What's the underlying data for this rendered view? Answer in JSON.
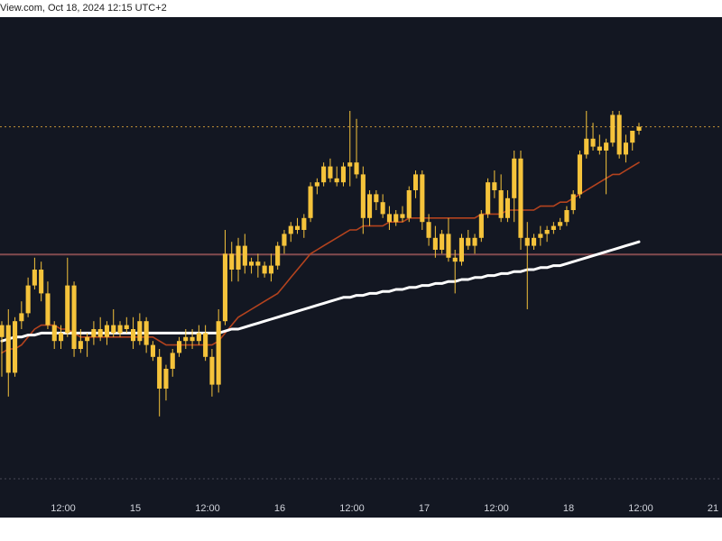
{
  "header": {
    "text": "View.com, Oct 18, 2024 12:15 UTC+2"
  },
  "colors": {
    "background": "#131722",
    "candle": "#f5c33b",
    "ma_short": "#b4431e",
    "ma_long": "#ffffff",
    "resistance": "#d8a13a",
    "support": "#8a4e52",
    "tick_text": "#d1d4dc"
  },
  "chart_data": {
    "type": "candlestick",
    "x_tick_labels": [
      "12:00",
      "15",
      "12:00",
      "16",
      "12:00",
      "17",
      "12:00",
      "18",
      "12:00",
      "21"
    ],
    "ylim": [
      0,
      100
    ],
    "grid": false,
    "legend": "none",
    "levels": [
      {
        "kind": "resistance-dotted",
        "value": 86
      },
      {
        "kind": "support-solid",
        "value": 53.8
      }
    ],
    "candles": [
      {
        "o": 33,
        "h": 37,
        "l": 23,
        "c": 36
      },
      {
        "o": 36,
        "h": 40,
        "l": 18,
        "c": 24
      },
      {
        "o": 24,
        "h": 38,
        "l": 23,
        "c": 37
      },
      {
        "o": 37,
        "h": 42,
        "l": 35,
        "c": 39
      },
      {
        "o": 39,
        "h": 48,
        "l": 38,
        "c": 46
      },
      {
        "o": 46,
        "h": 53,
        "l": 45,
        "c": 50
      },
      {
        "o": 50,
        "h": 52,
        "l": 42,
        "c": 44
      },
      {
        "o": 44,
        "h": 47,
        "l": 35,
        "c": 36
      },
      {
        "o": 36,
        "h": 37,
        "l": 30,
        "c": 32
      },
      {
        "o": 32,
        "h": 36,
        "l": 30,
        "c": 34
      },
      {
        "o": 34,
        "h": 53,
        "l": 33,
        "c": 46
      },
      {
        "o": 46,
        "h": 47,
        "l": 28,
        "c": 30
      },
      {
        "o": 30,
        "h": 35,
        "l": 29,
        "c": 32
      },
      {
        "o": 32,
        "h": 34,
        "l": 28,
        "c": 33
      },
      {
        "o": 33,
        "h": 37,
        "l": 31,
        "c": 35
      },
      {
        "o": 35,
        "h": 38,
        "l": 32,
        "c": 33
      },
      {
        "o": 33,
        "h": 37,
        "l": 31,
        "c": 36
      },
      {
        "o": 36,
        "h": 40,
        "l": 33,
        "c": 34
      },
      {
        "o": 34,
        "h": 37,
        "l": 33,
        "c": 36
      },
      {
        "o": 36,
        "h": 38,
        "l": 34,
        "c": 35
      },
      {
        "o": 35,
        "h": 38,
        "l": 30,
        "c": 32
      },
      {
        "o": 32,
        "h": 39,
        "l": 31,
        "c": 37
      },
      {
        "o": 37,
        "h": 38,
        "l": 29,
        "c": 31
      },
      {
        "o": 31,
        "h": 32,
        "l": 27,
        "c": 28
      },
      {
        "o": 28,
        "h": 30,
        "l": 13,
        "c": 20
      },
      {
        "o": 20,
        "h": 26,
        "l": 17,
        "c": 25
      },
      {
        "o": 25,
        "h": 30,
        "l": 23,
        "c": 29
      },
      {
        "o": 29,
        "h": 33,
        "l": 28,
        "c": 32
      },
      {
        "o": 32,
        "h": 35,
        "l": 30,
        "c": 33
      },
      {
        "o": 33,
        "h": 35,
        "l": 30,
        "c": 32
      },
      {
        "o": 32,
        "h": 36,
        "l": 31,
        "c": 34
      },
      {
        "o": 34,
        "h": 36,
        "l": 27,
        "c": 28
      },
      {
        "o": 28,
        "h": 30,
        "l": 18,
        "c": 21
      },
      {
        "o": 21,
        "h": 40,
        "l": 19,
        "c": 37
      },
      {
        "o": 37,
        "h": 60,
        "l": 36,
        "c": 54
      },
      {
        "o": 54,
        "h": 57,
        "l": 47,
        "c": 50
      },
      {
        "o": 50,
        "h": 58,
        "l": 47,
        "c": 56
      },
      {
        "o": 56,
        "h": 59,
        "l": 49,
        "c": 51
      },
      {
        "o": 51,
        "h": 53,
        "l": 49,
        "c": 52
      },
      {
        "o": 52,
        "h": 54,
        "l": 48,
        "c": 51
      },
      {
        "o": 51,
        "h": 52,
        "l": 48,
        "c": 49
      },
      {
        "o": 49,
        "h": 54,
        "l": 47,
        "c": 51
      },
      {
        "o": 51,
        "h": 57,
        "l": 50,
        "c": 56
      },
      {
        "o": 56,
        "h": 60,
        "l": 54,
        "c": 59
      },
      {
        "o": 59,
        "h": 62,
        "l": 57,
        "c": 61
      },
      {
        "o": 61,
        "h": 63,
        "l": 59,
        "c": 60
      },
      {
        "o": 60,
        "h": 64,
        "l": 58,
        "c": 63
      },
      {
        "o": 63,
        "h": 72,
        "l": 62,
        "c": 71
      },
      {
        "o": 71,
        "h": 73,
        "l": 69,
        "c": 72
      },
      {
        "o": 72,
        "h": 77,
        "l": 71,
        "c": 76
      },
      {
        "o": 76,
        "h": 78,
        "l": 72,
        "c": 73
      },
      {
        "o": 73,
        "h": 76,
        "l": 71,
        "c": 72
      },
      {
        "o": 72,
        "h": 77,
        "l": 71,
        "c": 76
      },
      {
        "o": 76,
        "h": 90,
        "l": 71,
        "c": 77
      },
      {
        "o": 77,
        "h": 88,
        "l": 73,
        "c": 74
      },
      {
        "o": 74,
        "h": 76,
        "l": 59,
        "c": 63
      },
      {
        "o": 63,
        "h": 70,
        "l": 61,
        "c": 69
      },
      {
        "o": 69,
        "h": 70,
        "l": 65,
        "c": 67
      },
      {
        "o": 67,
        "h": 69,
        "l": 63,
        "c": 64
      },
      {
        "o": 64,
        "h": 66,
        "l": 60,
        "c": 62
      },
      {
        "o": 62,
        "h": 65,
        "l": 61,
        "c": 64
      },
      {
        "o": 64,
        "h": 66,
        "l": 62,
        "c": 63
      },
      {
        "o": 63,
        "h": 71,
        "l": 62,
        "c": 70
      },
      {
        "o": 70,
        "h": 75,
        "l": 68,
        "c": 74
      },
      {
        "o": 74,
        "h": 75,
        "l": 60,
        "c": 62
      },
      {
        "o": 62,
        "h": 64,
        "l": 56,
        "c": 58
      },
      {
        "o": 58,
        "h": 61,
        "l": 53,
        "c": 55
      },
      {
        "o": 55,
        "h": 60,
        "l": 54,
        "c": 59
      },
      {
        "o": 59,
        "h": 63,
        "l": 52,
        "c": 53
      },
      {
        "o": 53,
        "h": 55,
        "l": 44,
        "c": 52
      },
      {
        "o": 52,
        "h": 59,
        "l": 51,
        "c": 58
      },
      {
        "o": 58,
        "h": 60,
        "l": 55,
        "c": 56
      },
      {
        "o": 56,
        "h": 59,
        "l": 54,
        "c": 58
      },
      {
        "o": 58,
        "h": 65,
        "l": 57,
        "c": 64
      },
      {
        "o": 64,
        "h": 73,
        "l": 63,
        "c": 72
      },
      {
        "o": 72,
        "h": 75,
        "l": 68,
        "c": 70
      },
      {
        "o": 70,
        "h": 74,
        "l": 62,
        "c": 63
      },
      {
        "o": 63,
        "h": 70,
        "l": 62,
        "c": 68
      },
      {
        "o": 68,
        "h": 80,
        "l": 62,
        "c": 78
      },
      {
        "o": 78,
        "h": 80,
        "l": 55,
        "c": 58
      },
      {
        "o": 58,
        "h": 62,
        "l": 40,
        "c": 56
      },
      {
        "o": 56,
        "h": 59,
        "l": 55,
        "c": 58
      },
      {
        "o": 58,
        "h": 61,
        "l": 56,
        "c": 59
      },
      {
        "o": 59,
        "h": 61,
        "l": 57,
        "c": 60
      },
      {
        "o": 60,
        "h": 62,
        "l": 59,
        "c": 61
      },
      {
        "o": 61,
        "h": 63,
        "l": 60,
        "c": 62
      },
      {
        "o": 62,
        "h": 66,
        "l": 61,
        "c": 65
      },
      {
        "o": 65,
        "h": 70,
        "l": 64,
        "c": 69
      },
      {
        "o": 69,
        "h": 80,
        "l": 68,
        "c": 79
      },
      {
        "o": 79,
        "h": 90,
        "l": 78,
        "c": 83
      },
      {
        "o": 83,
        "h": 87,
        "l": 80,
        "c": 81
      },
      {
        "o": 81,
        "h": 84,
        "l": 79,
        "c": 80
      },
      {
        "o": 80,
        "h": 83,
        "l": 69,
        "c": 82
      },
      {
        "o": 82,
        "h": 90,
        "l": 81,
        "c": 89
      },
      {
        "o": 89,
        "h": 90,
        "l": 78,
        "c": 79
      },
      {
        "o": 79,
        "h": 84,
        "l": 77,
        "c": 82
      },
      {
        "o": 82,
        "h": 85,
        "l": 80,
        "c": 85
      },
      {
        "o": 85,
        "h": 87,
        "l": 84,
        "c": 86
      }
    ],
    "series": [
      {
        "kind": "moving-average-short",
        "values": [
          29,
          30,
          30,
          31,
          33,
          35,
          36,
          36,
          36,
          35,
          35,
          34,
          33,
          33,
          33,
          33,
          33,
          33,
          33,
          33,
          33,
          33,
          33,
          33,
          32,
          31,
          31,
          31,
          31,
          31,
          31,
          31,
          31,
          32,
          34,
          36,
          38,
          39,
          40,
          41,
          42,
          43,
          44,
          46,
          48,
          50,
          52,
          54,
          55,
          56,
          57,
          58,
          59,
          60,
          60,
          61,
          61,
          61,
          61,
          62,
          62,
          62,
          63,
          63,
          63,
          63,
          63,
          63,
          63,
          63,
          63,
          63,
          63,
          64,
          64,
          64,
          64,
          65,
          65,
          65,
          65,
          65,
          66,
          66,
          66,
          67,
          67,
          68,
          69,
          70,
          71,
          72,
          73,
          74,
          74,
          75,
          76,
          77
        ]
      },
      {
        "kind": "moving-average-long",
        "values": [
          32,
          32.5,
          33,
          33,
          33.5,
          33.5,
          34,
          34,
          34,
          34,
          34,
          34,
          34,
          34,
          34,
          34,
          34,
          34,
          34,
          34,
          34,
          34,
          34,
          34,
          34,
          34,
          34,
          34,
          34,
          34,
          34,
          34,
          34,
          34,
          34.5,
          35,
          35,
          35.5,
          36,
          36.5,
          37,
          37.5,
          38,
          38.5,
          39,
          39.5,
          40,
          40.5,
          41,
          41.5,
          42,
          42.5,
          43,
          43,
          43.5,
          43.5,
          44,
          44,
          44.5,
          44.5,
          45,
          45,
          45.5,
          45.5,
          46,
          46,
          46.5,
          46.5,
          47,
          47,
          47.5,
          47.5,
          48,
          48,
          48.5,
          48.5,
          49,
          49,
          49.5,
          49.5,
          50,
          50,
          50.5,
          50.5,
          51,
          51,
          51.5,
          52,
          52.5,
          53,
          53.5,
          54,
          54.5,
          55,
          55.5,
          56,
          56.5,
          57
        ]
      }
    ]
  }
}
